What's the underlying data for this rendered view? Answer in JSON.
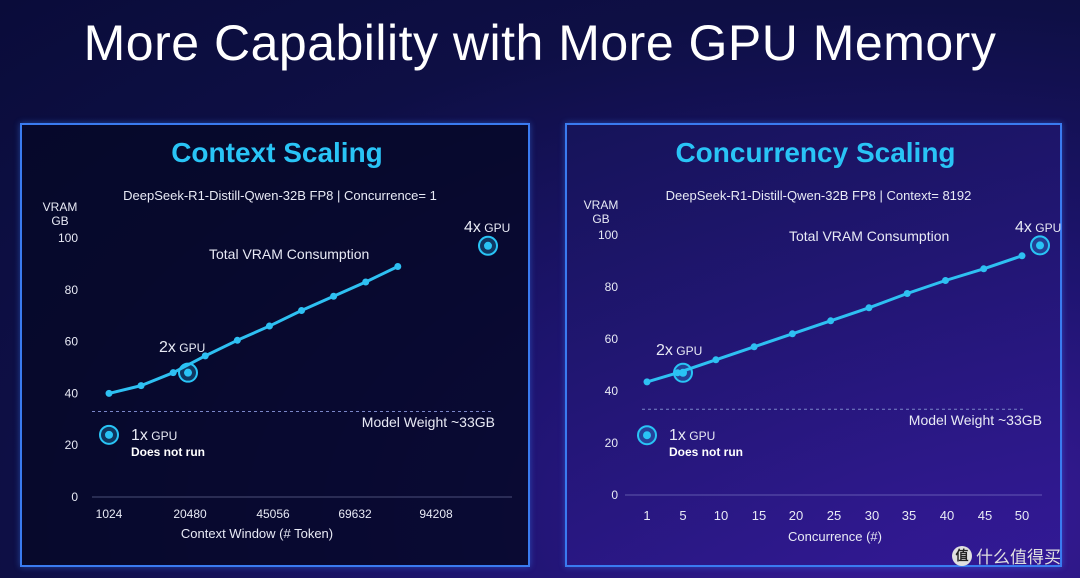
{
  "title": "More Capability with More GPU Memory",
  "watermark": {
    "icon": "值",
    "text": "什么值得买"
  },
  "colors": {
    "accent": "#29c4f6",
    "line": "#2ec0f2",
    "panel_border": "#3a7bf0"
  },
  "chart_data": [
    {
      "type": "line",
      "title": "Context Scaling",
      "subtitle": "DeepSeek-R1-Distill-Qwen-32B FP8  |  Concurrence= 1",
      "ylabel": [
        "VRAM",
        "GB"
      ],
      "xlabel": "Context Window (# Token)",
      "ylim": [
        0,
        100
      ],
      "yticks": [
        0,
        20,
        40,
        60,
        80,
        100
      ],
      "x_tick_labels": [
        "1024",
        "20480",
        "45056",
        "69632",
        "94208"
      ],
      "series": [
        {
          "name": "Total VRAM Consumption",
          "x": [
            1024,
            9216,
            17408,
            25600,
            33792,
            41984,
            50176,
            58368,
            66560,
            74752
          ],
          "values": [
            40,
            43,
            48,
            54.5,
            60.5,
            66,
            72,
            77.5,
            83,
            89
          ]
        }
      ],
      "threshold": {
        "label": "Model Weight ~33GB",
        "value": 33
      },
      "gpu_markers": [
        {
          "count": "1x",
          "unit": "GPU",
          "note": "Does not run",
          "vram": 24
        },
        {
          "count": "2x",
          "unit": "GPU",
          "note": "",
          "vram": 48
        },
        {
          "count": "4x",
          "unit": "GPU",
          "note": "",
          "vram": 97
        }
      ],
      "grid": false
    },
    {
      "type": "line",
      "title": "Concurrency Scaling",
      "subtitle": "DeepSeek-R1-Distill-Qwen-32B FP8  |  Context= 8192",
      "ylabel": [
        "VRAM",
        "GB"
      ],
      "xlabel": "Concurrence (#)",
      "ylim": [
        0,
        100
      ],
      "yticks": [
        0,
        20,
        40,
        60,
        80,
        100
      ],
      "x_tick_labels": [
        "1",
        "5",
        "10",
        "15",
        "20",
        "25",
        "30",
        "35",
        "40",
        "45",
        "50"
      ],
      "series": [
        {
          "name": "Total VRAM Consumption",
          "x": [
            1,
            5,
            10,
            15,
            20,
            25,
            30,
            35,
            40,
            45,
            50
          ],
          "values": [
            43.5,
            47,
            52,
            57,
            62,
            67,
            72,
            77.5,
            82.5,
            87,
            92
          ]
        }
      ],
      "threshold": {
        "label": "Model Weight ~33GB",
        "value": 33
      },
      "gpu_markers": [
        {
          "count": "1x",
          "unit": "GPU",
          "note": "Does not run",
          "vram": 23
        },
        {
          "count": "2x",
          "unit": "GPU",
          "note": "",
          "vram": 47
        },
        {
          "count": "4x",
          "unit": "GPU",
          "note": "",
          "vram": 96
        }
      ],
      "grid": false
    }
  ]
}
